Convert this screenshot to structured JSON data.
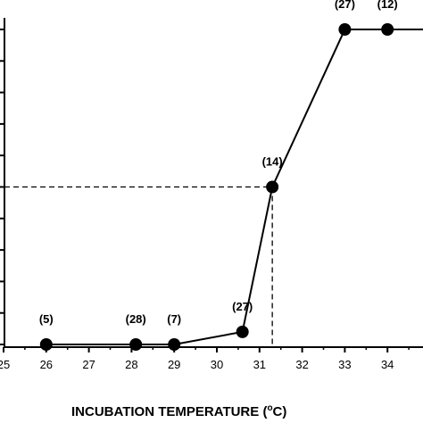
{
  "chart_data": {
    "type": "line",
    "xlabel_main": "INCUBATION TEMPERATURE (",
    "xlabel_unit_sup": "o",
    "xlabel_unit": "C)",
    "x_ticks": [
      "25",
      "26",
      "27",
      "28",
      "29",
      "30",
      "31",
      "32",
      "33",
      "34"
    ],
    "xlim": [
      25,
      35
    ],
    "ylim": [
      0,
      1
    ],
    "grid": false,
    "series": [
      {
        "x": [
          26,
          28.1,
          29,
          30.6,
          31.3,
          33,
          34
        ],
        "y": [
          0,
          0,
          0,
          0.04,
          0.5,
          1,
          1
        ],
        "n_labels": [
          "(5)",
          "(28)",
          "(7)",
          "(27)",
          "(14)",
          "(27)",
          "(12)"
        ]
      }
    ],
    "reference_point": {
      "x": 31.3,
      "y": 0.5
    }
  }
}
